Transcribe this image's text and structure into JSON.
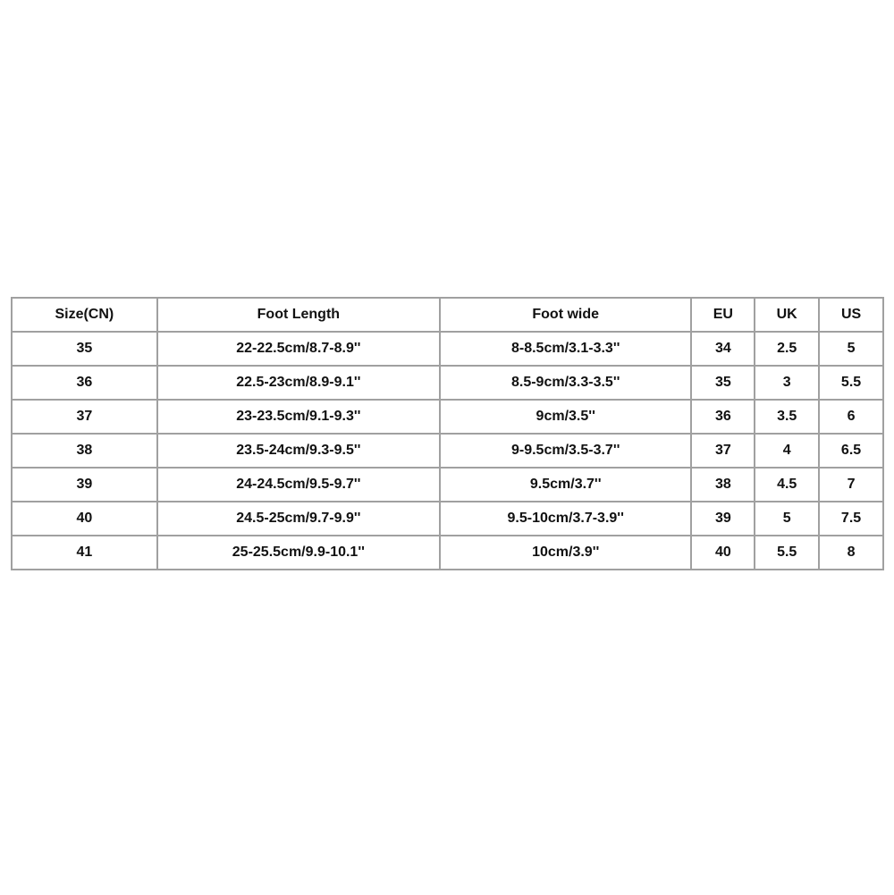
{
  "headers": [
    "Size(CN)",
    "Foot Length",
    "Foot wide",
    "EU",
    "UK",
    "US"
  ],
  "rows": [
    [
      "35",
      "22-22.5cm/8.7-8.9''",
      "8-8.5cm/3.1-3.3''",
      "34",
      "2.5",
      "5"
    ],
    [
      "36",
      "22.5-23cm/8.9-9.1''",
      "8.5-9cm/3.3-3.5''",
      "35",
      "3",
      "5.5"
    ],
    [
      "37",
      "23-23.5cm/9.1-9.3''",
      "9cm/3.5''",
      "36",
      "3.5",
      "6"
    ],
    [
      "38",
      "23.5-24cm/9.3-9.5''",
      "9-9.5cm/3.5-3.7''",
      "37",
      "4",
      "6.5"
    ],
    [
      "39",
      "24-24.5cm/9.5-9.7''",
      "9.5cm/3.7''",
      "38",
      "4.5",
      "7"
    ],
    [
      "40",
      "24.5-25cm/9.7-9.9''",
      "9.5-10cm/3.7-3.9''",
      "39",
      "5",
      "7.5"
    ],
    [
      "41",
      "25-25.5cm/9.9-10.1''",
      "10cm/3.9''",
      "40",
      "5.5",
      "8"
    ]
  ]
}
